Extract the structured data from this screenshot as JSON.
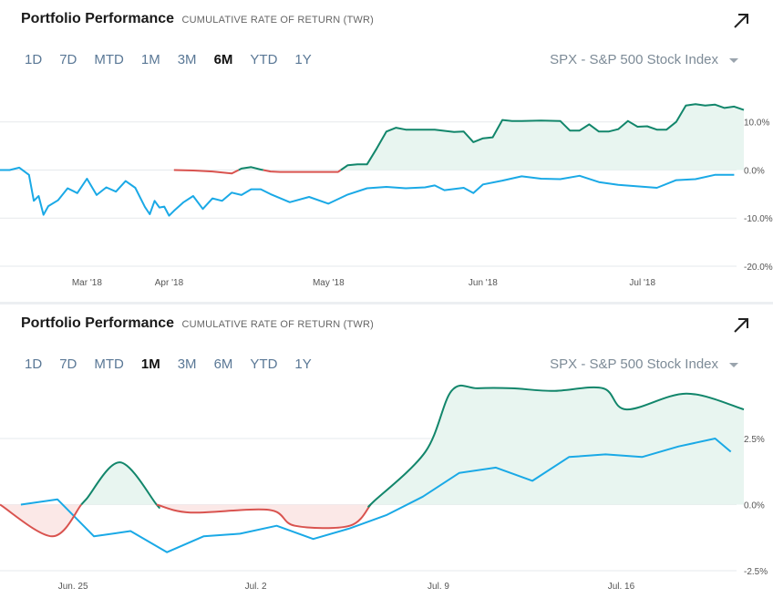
{
  "chart_data": [
    {
      "type": "line",
      "title": "Portfolio Performance",
      "subtitle": "CUMULATIVE RATE OF RETURN (TWR)",
      "ranges": [
        "1D",
        "7D",
        "MTD",
        "1M",
        "3M",
        "6M",
        "YTD",
        "1Y"
      ],
      "active_range": "6M",
      "benchmark_selector": "SPX - S&P 500 Stock Index",
      "x_ticks": [
        {
          "label": "Mar '18",
          "x": 18
        },
        {
          "label": "Apr '18",
          "x": 35
        },
        {
          "label": "May '18",
          "x": 68
        },
        {
          "label": "Jun '18",
          "x": 100
        },
        {
          "label": "Jul '18",
          "x": 133
        }
      ],
      "y_ticks": [
        {
          "label": "10.0%",
          "value": 10
        },
        {
          "label": "0.0%",
          "value": 0
        },
        {
          "label": "-10.0%",
          "value": -10
        },
        {
          "label": "-20.0%",
          "value": -20
        }
      ],
      "xlim": [
        0,
        154
      ],
      "ylim": [
        -20,
        14.5
      ],
      "grid": true,
      "colors": {
        "portfolio_up": "#12866b",
        "portfolio_down": "#d9534f",
        "portfolio_fill": "#e8f5f0",
        "benchmark": "#1aa9e6"
      },
      "series": [
        {
          "role": "portfolio",
          "x": [
            36,
            40,
            44,
            48,
            50,
            52,
            54,
            56,
            58,
            62,
            66,
            70,
            72,
            74,
            76,
            78,
            80,
            82,
            84,
            86,
            90,
            94,
            96,
            98,
            100,
            102,
            104,
            106,
            108,
            112,
            116,
            118,
            120,
            122,
            124,
            126,
            128,
            130,
            132,
            134,
            136,
            138,
            140,
            142,
            144,
            146,
            148,
            150,
            152,
            154
          ],
          "y": [
            0.0,
            -0.1,
            -0.3,
            -0.7,
            0.3,
            0.6,
            0.1,
            -0.3,
            -0.4,
            -0.4,
            -0.4,
            -0.4,
            1.0,
            1.2,
            1.2,
            4.5,
            8.0,
            8.8,
            8.4,
            8.4,
            8.4,
            7.9,
            8.0,
            5.8,
            6.6,
            6.8,
            10.4,
            10.2,
            10.2,
            10.3,
            10.2,
            8.2,
            8.2,
            9.5,
            8.0,
            8.0,
            8.5,
            10.2,
            9.0,
            9.1,
            8.4,
            8.4,
            10.0,
            13.4,
            13.7,
            13.4,
            13.6,
            12.9,
            13.2,
            12.5
          ]
        },
        {
          "role": "benchmark",
          "x": [
            0,
            2,
            4,
            6,
            7,
            8,
            9,
            10,
            12,
            14,
            16,
            18,
            20,
            22,
            24,
            26,
            28,
            30,
            31,
            32,
            33,
            34,
            35,
            36,
            38,
            40,
            42,
            44,
            46,
            48,
            50,
            52,
            54,
            56,
            60,
            64,
            68,
            72,
            76,
            80,
            84,
            88,
            90,
            92,
            96,
            98,
            100,
            104,
            108,
            112,
            116,
            120,
            124,
            128,
            132,
            136,
            140,
            144,
            148,
            152
          ],
          "y": [
            0.0,
            0.0,
            0.5,
            -1.0,
            -6.4,
            -5.4,
            -9.3,
            -7.5,
            -6.3,
            -3.8,
            -4.8,
            -1.8,
            -5.2,
            -3.6,
            -4.5,
            -2.3,
            -3.7,
            -7.7,
            -9.2,
            -6.4,
            -7.8,
            -7.6,
            -9.5,
            -8.5,
            -6.7,
            -5.4,
            -8.1,
            -5.9,
            -6.4,
            -4.7,
            -5.2,
            -4.0,
            -4.0,
            -5.0,
            -6.7,
            -5.6,
            -7.0,
            -5.1,
            -3.8,
            -3.5,
            -3.8,
            -3.6,
            -3.2,
            -4.2,
            -3.7,
            -4.8,
            -3.0,
            -2.2,
            -1.3,
            -1.8,
            -1.9,
            -1.2,
            -2.5,
            -3.1,
            -3.4,
            -3.7,
            -2.1,
            -1.9,
            -1.0,
            -1.0
          ]
        }
      ]
    },
    {
      "type": "line",
      "title": "Portfolio Performance",
      "subtitle": "CUMULATIVE RATE OF RETURN (TWR)",
      "ranges": [
        "1D",
        "7D",
        "MTD",
        "1M",
        "3M",
        "6M",
        "YTD",
        "1Y"
      ],
      "active_range": "1M",
      "benchmark_selector": "SPX - S&P 500 Stock Index",
      "x_ticks": [
        {
          "label": "Jun. 25",
          "x": 2
        },
        {
          "label": "Jul. 2",
          "x": 9
        },
        {
          "label": "Jul. 9",
          "x": 16
        },
        {
          "label": "Jul. 16",
          "x": 23
        }
      ],
      "y_ticks": [
        {
          "label": "2.5%",
          "value": 2.5
        },
        {
          "label": "0.0%",
          "value": 0
        },
        {
          "label": "-2.5%",
          "value": -2.5
        }
      ],
      "xlim": [
        -0.8,
        27.7
      ],
      "ylim": [
        -2.5,
        4.5
      ],
      "grid": true,
      "colors": {
        "portfolio_up": "#12866b",
        "portfolio_down": "#d9534f",
        "portfolio_fill": "#e8f5f0",
        "portfolio_down_fill": "#fbe8e7",
        "benchmark": "#1aa9e6"
      },
      "series": [
        {
          "role": "portfolio",
          "x": [
            -0.8,
            1.2,
            2.5,
            3.8,
            5.2,
            6.5,
            9.5,
            10.5,
            12.6,
            13.5,
            15.5,
            16.5,
            17.5,
            18.8,
            20.4,
            22.3,
            23.2,
            25.5,
            27.7
          ],
          "y": [
            0.0,
            -1.2,
            0.2,
            1.6,
            0.0,
            -0.3,
            -0.2,
            -0.8,
            -0.8,
            0.1,
            2.0,
            4.3,
            4.4,
            4.4,
            4.3,
            4.4,
            3.6,
            4.2,
            3.6
          ]
        },
        {
          "role": "benchmark",
          "x": [
            0.0,
            1.4,
            2.8,
            4.2,
            5.6,
            7.0,
            8.4,
            9.8,
            11.2,
            12.6,
            14.0,
            15.4,
            16.8,
            18.2,
            19.6,
            21.0,
            22.4,
            23.8,
            25.2,
            26.6,
            27.2
          ],
          "y": [
            0.0,
            0.2,
            -1.2,
            -1.0,
            -1.8,
            -1.2,
            -1.1,
            -0.8,
            -1.3,
            -0.9,
            -0.4,
            0.3,
            1.2,
            1.4,
            0.9,
            1.8,
            1.9,
            1.8,
            2.2,
            2.5,
            2.0
          ]
        }
      ]
    }
  ]
}
